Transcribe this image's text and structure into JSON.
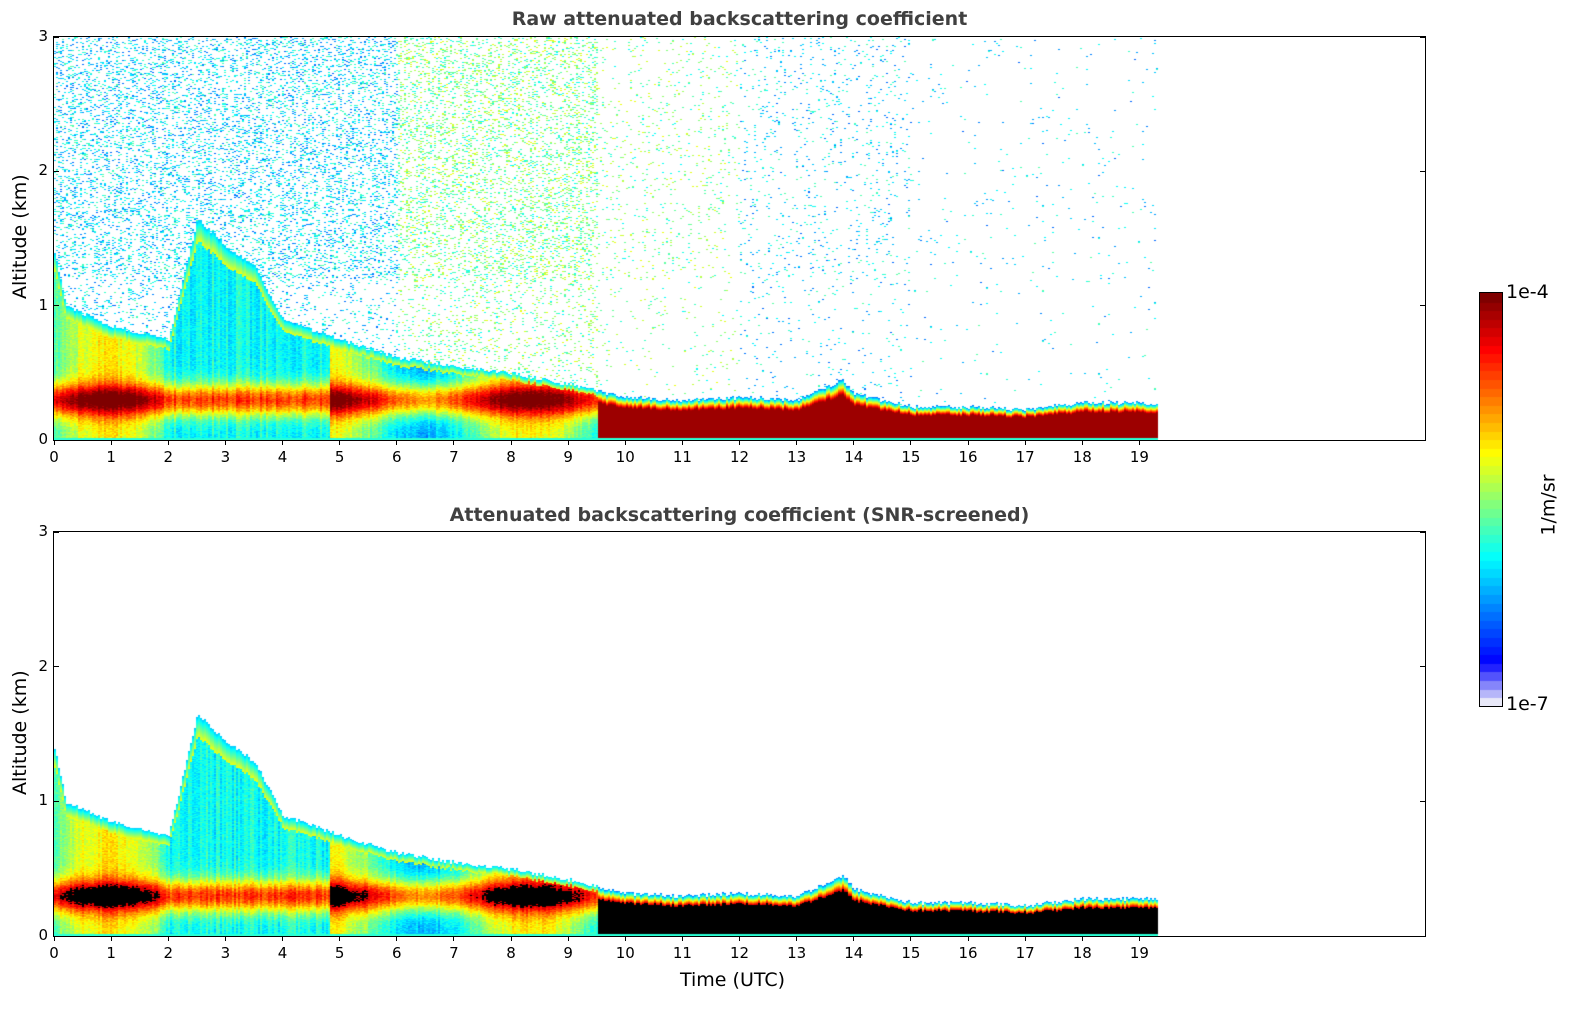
{
  "chart_data": [
    {
      "type": "heatmap",
      "title": "Raw attenuated backscattering coefficient",
      "xlabel": "",
      "ylabel": "Altitude (km)",
      "xlim": [
        0,
        24
      ],
      "ylim": [
        0,
        3
      ],
      "xticks": [
        "0",
        "1",
        "2",
        "3",
        "4",
        "5",
        "6",
        "7",
        "8",
        "9",
        "10",
        "11",
        "12",
        "13",
        "14",
        "15",
        "16",
        "17",
        "18",
        "19"
      ],
      "yticks": [
        "0",
        "1",
        "2",
        "3"
      ],
      "data_end_time": 19.3,
      "screened": false,
      "layer_top_km": {
        "time": [
          0,
          0.2,
          1,
          2,
          2.5,
          3,
          3.5,
          4,
          5,
          6,
          7,
          8,
          9,
          10,
          11,
          12,
          13,
          13.8,
          14,
          15,
          16,
          17,
          18,
          19,
          19.3
        ],
        "top": [
          1.4,
          1.0,
          0.85,
          0.75,
          1.65,
          1.45,
          1.3,
          0.9,
          0.75,
          0.62,
          0.55,
          0.5,
          0.42,
          0.32,
          0.3,
          0.32,
          0.3,
          0.45,
          0.35,
          0.25,
          0.25,
          0.23,
          0.28,
          0.28,
          0.28
        ]
      },
      "noise_top_km": 3.0,
      "grid": false
    },
    {
      "type": "heatmap",
      "title": "Attenuated backscattering coefficient (SNR-screened)",
      "xlabel": "Time (UTC)",
      "ylabel": "Altitude (km)",
      "xlim": [
        0,
        24
      ],
      "ylim": [
        0,
        3
      ],
      "xticks": [
        "0",
        "1",
        "2",
        "3",
        "4",
        "5",
        "6",
        "7",
        "8",
        "9",
        "10",
        "11",
        "12",
        "13",
        "14",
        "15",
        "16",
        "17",
        "18",
        "19"
      ],
      "yticks": [
        "0",
        "1",
        "2",
        "3"
      ],
      "data_end_time": 19.3,
      "screened": true,
      "grid": false
    }
  ],
  "colorbar": {
    "label": "1/m/sr",
    "max_label": "1e-4",
    "min_label": "1e-7",
    "scale": "log",
    "colormap": "jet"
  }
}
